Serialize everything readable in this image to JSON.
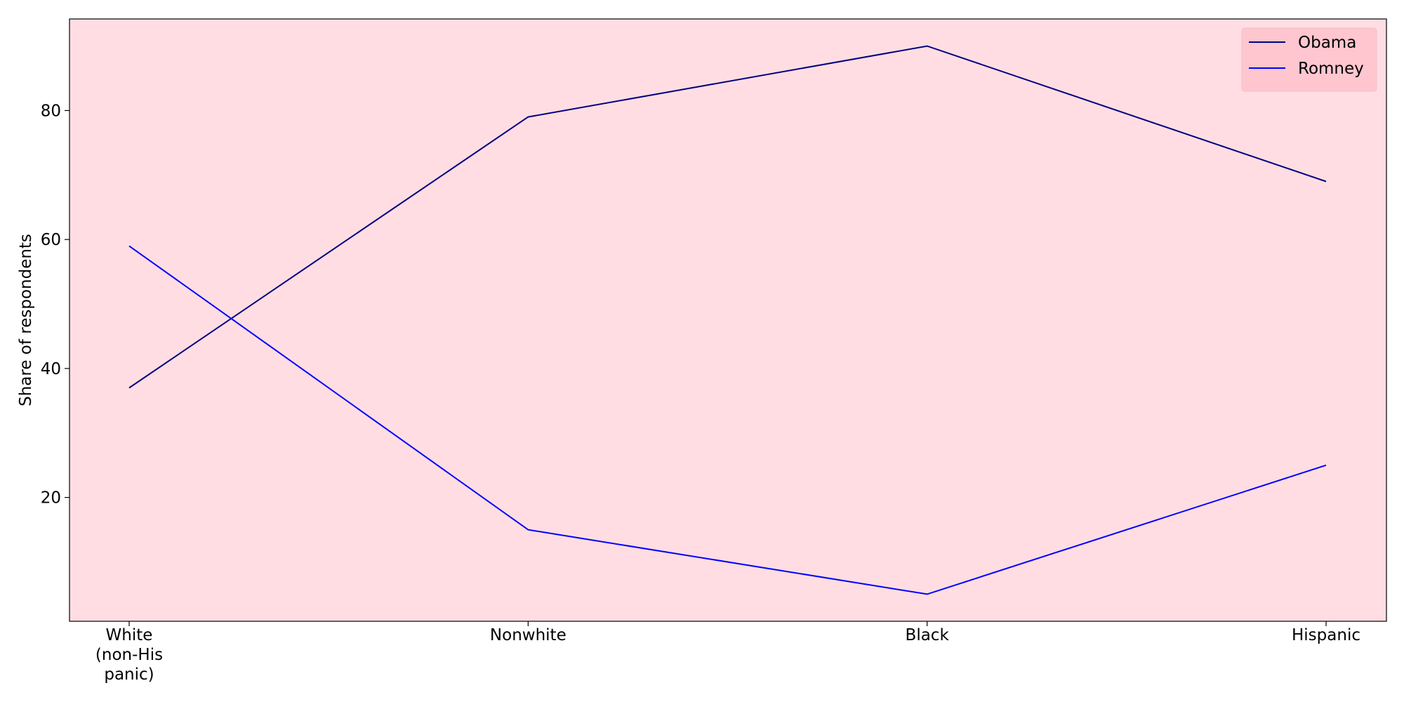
{
  "chart_data": {
    "type": "line",
    "title": "",
    "xlabel": "",
    "ylabel": "Share of respondents",
    "categories": [
      [
        "White",
        "(non-His",
        "panic)"
      ],
      [
        "Nonwhite"
      ],
      [
        "Black"
      ],
      [
        "Hispanic"
      ]
    ],
    "series": [
      {
        "name": "Obama",
        "values": [
          37,
          79,
          90,
          69
        ],
        "color": "#000080"
      },
      {
        "name": "Romney",
        "values": [
          59,
          15,
          5,
          25
        ],
        "color": "#0000ff"
      }
    ],
    "ylim": [
      0.8,
      94.2
    ],
    "yticks": [
      20,
      40,
      60,
      80
    ],
    "grid": false,
    "legend": "top-right",
    "background": "#ffdde3",
    "legend_background": "#ffc6d0"
  }
}
